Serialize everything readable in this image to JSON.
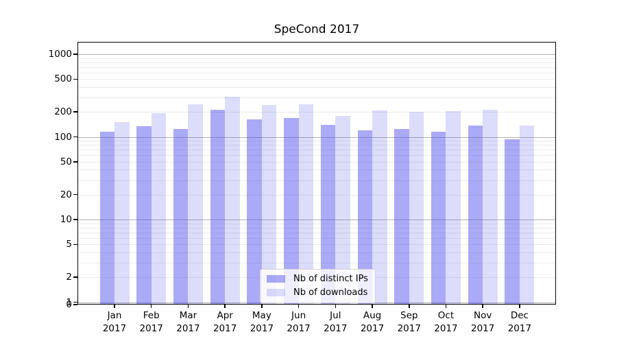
{
  "chart_data": {
    "type": "bar",
    "title": "SpeCond 2017",
    "yscale": "log",
    "categories": [
      "Jan",
      "Feb",
      "Mar",
      "Apr",
      "May",
      "Jun",
      "Jul",
      "Aug",
      "Sep",
      "Oct",
      "Nov",
      "Dec"
    ],
    "category_year": "2017",
    "series": [
      {
        "name": "Nb of distinct IPs",
        "color": "rgba(70,70,235,0.46)",
        "values": [
          116,
          134,
          124,
          213,
          162,
          168,
          140,
          121,
          125,
          115,
          138,
          94
        ]
      },
      {
        "name": "Nb of downloads",
        "color": "rgba(70,70,235,0.19)",
        "values": [
          150,
          195,
          248,
          306,
          242,
          248,
          180,
          209,
          200,
          204,
          211,
          136
        ]
      }
    ],
    "ytick_labels": [
      "1000",
      "500",
      "200",
      "100",
      "50",
      "20",
      "10",
      "5",
      "2",
      "1",
      "0"
    ],
    "ylim": [
      0,
      1500
    ],
    "grid": "both",
    "legend_position": "lower center",
    "colors": {
      "major_grid": "#b0b0b0",
      "minor_grid": "#ebebeb",
      "axis": "#000000",
      "background": "#ffffff"
    }
  }
}
